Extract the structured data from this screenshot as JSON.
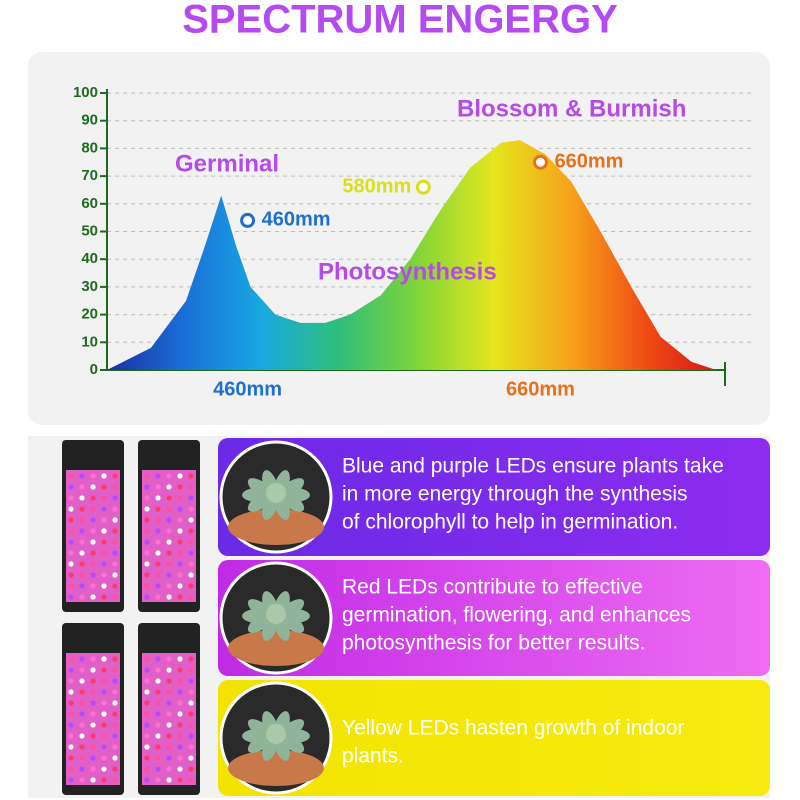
{
  "chart_data": {
    "type": "area",
    "title": "SPECTRUM ENGERGY",
    "x": [
      364,
      394,
      418,
      431,
      442,
      452,
      462,
      479,
      496,
      513,
      530,
      551,
      571,
      592,
      612,
      633,
      646,
      663,
      681,
      701,
      722,
      742,
      763,
      780
    ],
    "values": [
      0,
      8,
      25,
      45,
      63,
      45,
      30,
      20,
      17,
      17,
      20,
      27,
      40,
      58,
      73,
      82,
      83,
      78,
      68,
      50,
      30,
      12,
      3,
      0
    ],
    "xlim": [
      364,
      786
    ],
    "ylim": [
      0,
      100
    ],
    "yticks": [
      0,
      10,
      20,
      30,
      40,
      50,
      60,
      70,
      80,
      90,
      100
    ],
    "xticks": [
      {
        "value": 460,
        "label": "460mm"
      },
      {
        "value": 660,
        "label": "660mm"
      }
    ],
    "xtick_colors": [
      "#1f6fd0",
      "#e8701a"
    ],
    "grid": true,
    "gradient": [
      "#1a2fa0",
      "#1a6fd8",
      "#18a8e0",
      "#2fbf7a",
      "#7fd43a",
      "#e4e61e",
      "#f7a21a",
      "#ef4a14",
      "#d4101c"
    ],
    "annotations": [
      "Germinal",
      "Blossom & Burmish",
      "Photosynthesis"
    ],
    "points": [
      {
        "label": "460mm",
        "x": 460,
        "y": 54,
        "color": "#1f6fd0"
      },
      {
        "label": "580mm",
        "x": 580,
        "y": 66,
        "color": "#d8e01a"
      },
      {
        "label": "660mm",
        "x": 660,
        "y": 75,
        "color": "#e8701a"
      }
    ]
  },
  "panels": [
    {
      "lines": [
        "Blue and purple LEDs ensure plants take",
        "in more energy through the synthesis",
        "of chlorophyll to help in germination."
      ]
    },
    {
      "lines": [
        "Red LEDs contribute to effective",
        "germination, flowering, and enhances",
        "photosynthesis for better results."
      ]
    },
    {
      "lines": [
        "Yellow LEDs hasten growth of indoor",
        "plants."
      ]
    }
  ]
}
